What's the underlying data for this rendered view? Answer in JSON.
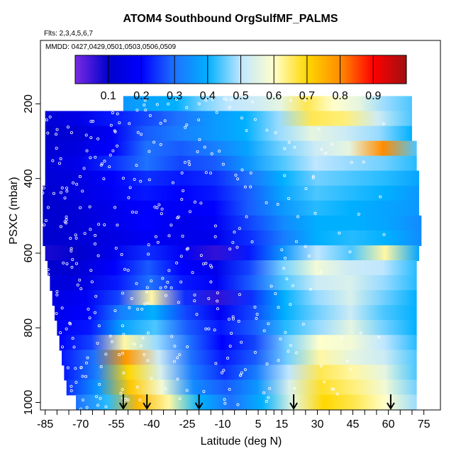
{
  "chart_data": {
    "type": "heatmap",
    "title": "ATOM4 Southbound OrgSulfMF_PALMS",
    "subtitle_flights": "Flts: 2,3,4,5,6,7",
    "subtitle_dates": "MMDD: 0427,0429,0501,0503,0506,0509",
    "xlabel": "Latitude (deg N)",
    "ylabel": "PSXC (mbar)",
    "xlim": [
      -87,
      82
    ],
    "ylim": [
      1020,
      30
    ],
    "x_ticks": [
      -85,
      -70,
      -55,
      -40,
      -25,
      -10,
      5,
      15,
      30,
      45,
      60,
      75
    ],
    "x_tick_labels": [
      "-85",
      "-70",
      "-55",
      "-40",
      "-25",
      "-10",
      "5",
      "15",
      "30",
      "45",
      "60",
      "75"
    ],
    "y_ticks": [
      200,
      400,
      600,
      800,
      1000
    ],
    "y_tick_labels": [
      "200",
      "400",
      "600",
      "800",
      "1000"
    ],
    "colorbar": {
      "range": [
        0,
        1
      ],
      "ticks": [
        0.1,
        0.2,
        0.3,
        0.4,
        0.5,
        0.6,
        0.7,
        0.8,
        0.9
      ],
      "tick_labels": [
        "0.1",
        "0.2",
        "0.3",
        "0.4",
        "0.5",
        "0.6",
        "0.7",
        "0.8",
        "0.9"
      ],
      "colors": [
        "#7a2be2",
        "#0000cd",
        "#0000ff",
        "#1e72ff",
        "#00b0ff",
        "#bfe6ff",
        "#ffffcc",
        "#ffd700",
        "#ff8c00",
        "#ff0000",
        "#a01010"
      ]
    },
    "layers": [
      {
        "p": 200,
        "lat": [
          -52,
          70
        ],
        "values": [
          0.36,
          0.38,
          0.4,
          0.46,
          0.5,
          0.52,
          0.56,
          0.66,
          0.6,
          0.56,
          0.48,
          0.44
        ]
      },
      {
        "p": 240,
        "lat": [
          -85,
          70
        ],
        "values": [
          0.12,
          0.15,
          0.22,
          0.26,
          0.3,
          0.36,
          0.4,
          0.48,
          0.66,
          0.64,
          0.52,
          0.44
        ]
      },
      {
        "p": 280,
        "lat": [
          -85,
          70
        ],
        "values": [
          0.1,
          0.12,
          0.18,
          0.28,
          0.32,
          0.36,
          0.4,
          0.48,
          0.56,
          0.52,
          0.48,
          0.4
        ]
      },
      {
        "p": 320,
        "lat": [
          -85,
          72
        ],
        "values": [
          0.11,
          0.14,
          0.2,
          0.3,
          0.28,
          0.32,
          0.38,
          0.46,
          0.52,
          0.56,
          0.8,
          0.44
        ]
      },
      {
        "p": 360,
        "lat": [
          -85,
          72
        ],
        "values": [
          0.12,
          0.16,
          0.24,
          0.3,
          0.26,
          0.28,
          0.36,
          0.44,
          0.5,
          0.48,
          0.46,
          0.42
        ]
      },
      {
        "p": 400,
        "lat": [
          -85,
          73
        ],
        "values": [
          0.12,
          0.14,
          0.2,
          0.24,
          0.22,
          0.24,
          0.3,
          0.4,
          0.46,
          0.44,
          0.42,
          0.38
        ]
      },
      {
        "p": 440,
        "lat": [
          -86,
          73
        ],
        "values": [
          0.1,
          0.14,
          0.18,
          0.22,
          0.2,
          0.22,
          0.28,
          0.38,
          0.44,
          0.42,
          0.4,
          0.36
        ]
      },
      {
        "p": 480,
        "lat": [
          -86,
          73
        ],
        "values": [
          0.1,
          0.12,
          0.16,
          0.2,
          0.18,
          0.2,
          0.28,
          0.36,
          0.42,
          0.4,
          0.38,
          0.36
        ]
      },
      {
        "p": 520,
        "lat": [
          -86,
          74
        ],
        "values": [
          0.1,
          0.12,
          0.16,
          0.2,
          0.16,
          0.18,
          0.26,
          0.34,
          0.4,
          0.4,
          0.38,
          0.34
        ]
      },
      {
        "p": 560,
        "lat": [
          -86,
          74
        ],
        "values": [
          0.1,
          0.12,
          0.14,
          0.18,
          0.16,
          0.16,
          0.24,
          0.32,
          0.4,
          0.42,
          0.4,
          0.34
        ]
      },
      {
        "p": 600,
        "lat": [
          -85,
          73
        ],
        "values": [
          0.08,
          0.1,
          0.16,
          0.24,
          0.18,
          0.06,
          0.22,
          0.36,
          0.5,
          0.44,
          0.62,
          0.38
        ]
      },
      {
        "p": 640,
        "lat": [
          -84,
          72
        ],
        "values": [
          0.1,
          0.12,
          0.2,
          0.28,
          0.2,
          0.16,
          0.26,
          0.46,
          0.58,
          0.52,
          0.5,
          0.42
        ]
      },
      {
        "p": 680,
        "lat": [
          -83,
          72
        ],
        "values": [
          0.12,
          0.14,
          0.22,
          0.3,
          0.22,
          0.18,
          0.28,
          0.44,
          0.52,
          0.54,
          0.48,
          0.42
        ]
      },
      {
        "p": 720,
        "lat": [
          -82,
          72
        ],
        "values": [
          0.14,
          0.18,
          0.26,
          0.62,
          0.24,
          0.06,
          0.24,
          0.4,
          0.48,
          0.54,
          0.46,
          0.4
        ]
      },
      {
        "p": 760,
        "lat": [
          -81,
          72
        ],
        "values": [
          0.16,
          0.2,
          0.32,
          0.4,
          0.26,
          0.18,
          0.26,
          0.4,
          0.46,
          0.52,
          0.44,
          0.4
        ]
      },
      {
        "p": 800,
        "lat": [
          -80,
          72
        ],
        "values": [
          0.18,
          0.22,
          0.38,
          0.44,
          0.28,
          0.22,
          0.28,
          0.42,
          0.48,
          0.56,
          0.46,
          0.4
        ]
      },
      {
        "p": 840,
        "lat": [
          -79,
          72
        ],
        "values": [
          0.2,
          0.26,
          0.62,
          0.48,
          0.3,
          0.2,
          0.26,
          0.46,
          0.6,
          0.58,
          0.5,
          0.42
        ]
      },
      {
        "p": 880,
        "lat": [
          -78,
          72
        ],
        "values": [
          0.22,
          0.3,
          0.78,
          0.52,
          0.3,
          0.22,
          0.28,
          0.46,
          0.62,
          0.56,
          0.52,
          0.44
        ]
      },
      {
        "p": 920,
        "lat": [
          -77,
          72
        ],
        "values": [
          0.22,
          0.32,
          0.7,
          0.54,
          0.32,
          0.24,
          0.32,
          0.5,
          0.66,
          0.62,
          0.56,
          0.44
        ]
      },
      {
        "p": 960,
        "lat": [
          -76,
          72
        ],
        "values": [
          0.24,
          0.36,
          0.72,
          0.58,
          0.34,
          0.28,
          0.36,
          0.54,
          0.68,
          0.64,
          0.58,
          0.46
        ]
      },
      {
        "p": 1000,
        "lat": [
          -72,
          72
        ],
        "values": [
          0.3,
          0.42,
          0.74,
          0.62,
          0.4,
          0.3,
          0.4,
          0.56,
          0.7,
          0.66,
          0.6,
          0.48
        ]
      }
    ],
    "arrow_markers_lat": [
      -52,
      -42,
      -20,
      20,
      61
    ]
  }
}
